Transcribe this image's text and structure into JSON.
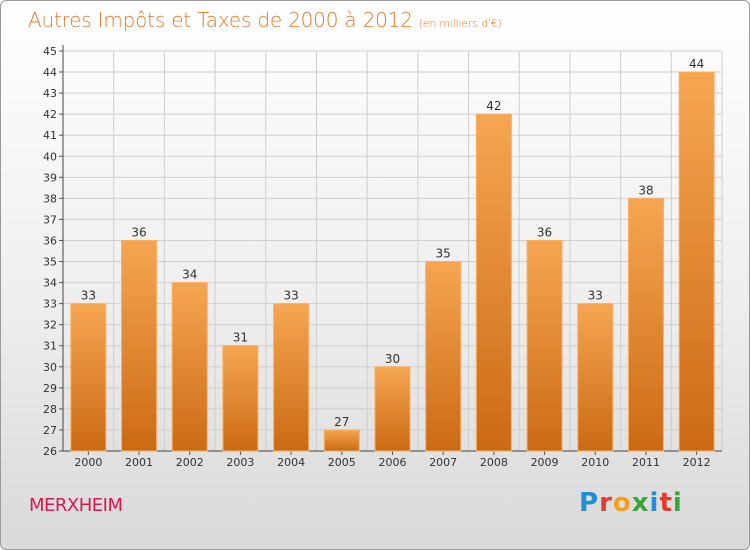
{
  "title": "Autres Impôts et Taxes de 2000 à 2012",
  "title_unit": "(en milliers d'€)",
  "location": "MERXHEIM",
  "brand": {
    "letters": [
      "P",
      "r",
      "o",
      "x",
      "i",
      "t",
      "i"
    ],
    "colors": [
      "#1f8fd6",
      "#e23b2b",
      "#f2a01c",
      "#3aa63a",
      "#1f8fd6",
      "#e23b2b",
      "#3aa63a"
    ]
  },
  "colors": {
    "bar_top": "#f6a652",
    "bar_bottom": "#cc6a14",
    "bar_edge": "#f7b067",
    "grid": "#cfcfcf",
    "title": "#e07a2a",
    "location": "#d8184f"
  },
  "chart_data": {
    "type": "bar",
    "title": "Autres Impôts et Taxes de 2000 à 2012",
    "subtitle": "(en milliers d'€)",
    "xlabel": "",
    "ylabel": "",
    "categories": [
      "2000",
      "2001",
      "2002",
      "2003",
      "2004",
      "2005",
      "2006",
      "2007",
      "2008",
      "2009",
      "2010",
      "2011",
      "2012"
    ],
    "values": [
      33,
      36,
      34,
      31,
      33,
      27,
      30,
      35,
      42,
      36,
      33,
      38,
      44
    ],
    "ylim": [
      26,
      45
    ],
    "yticks": [
      26,
      27,
      28,
      29,
      30,
      31,
      32,
      33,
      34,
      35,
      36,
      37,
      38,
      39,
      40,
      41,
      42,
      43,
      44,
      45
    ],
    "grid": true,
    "data_labels": true
  }
}
